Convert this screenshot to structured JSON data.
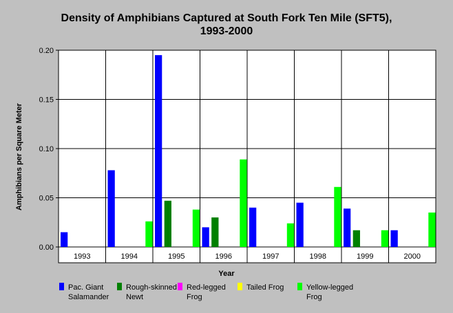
{
  "chart_data": {
    "type": "bar",
    "title_line1": "Density of Amphibians Captured at South Fork Ten Mile (SFT5),",
    "title_line2": "1993-2000",
    "xlabel": "Year",
    "ylabel": "Amphibians per Square Meter",
    "ylim": [
      0,
      0.2
    ],
    "yticks": [
      "0.00",
      "0.05",
      "0.10",
      "0.15",
      "0.20"
    ],
    "categories": [
      "1993",
      "1994",
      "1995",
      "1996",
      "1997",
      "1998",
      "1999",
      "2000"
    ],
    "grid": true,
    "legend_position": "bottom",
    "series": [
      {
        "name": "Pac. Giant Salamander",
        "label_lines": [
          "Pac. Giant",
          "Salamander"
        ],
        "color": "#0000ff",
        "values": [
          0.015,
          0.078,
          0.195,
          0.02,
          0.04,
          0.045,
          0.039,
          0.017
        ]
      },
      {
        "name": "Rough-skinned Newt",
        "label_lines": [
          "Rough-skinned",
          "Newt"
        ],
        "color": "#008000",
        "values": [
          0,
          0,
          0.047,
          0.03,
          0,
          0,
          0.017,
          0
        ]
      },
      {
        "name": "Red-legged Frog",
        "label_lines": [
          "Red-legged",
          "Frog"
        ],
        "color": "#ff00ff",
        "values": [
          0,
          0,
          0,
          0,
          0,
          0,
          0,
          0
        ]
      },
      {
        "name": "Tailed Frog",
        "label_lines": [
          "Tailed Frog"
        ],
        "color": "#ffff00",
        "values": [
          0,
          0,
          0,
          0,
          0,
          0,
          0,
          0
        ]
      },
      {
        "name": "Yellow-legged Frog",
        "label_lines": [
          "Yellow-legged",
          "Frog"
        ],
        "color": "#00ff00",
        "values": [
          0,
          0.026,
          0.038,
          0.089,
          0.024,
          0.061,
          0.017,
          0.035
        ]
      }
    ]
  }
}
